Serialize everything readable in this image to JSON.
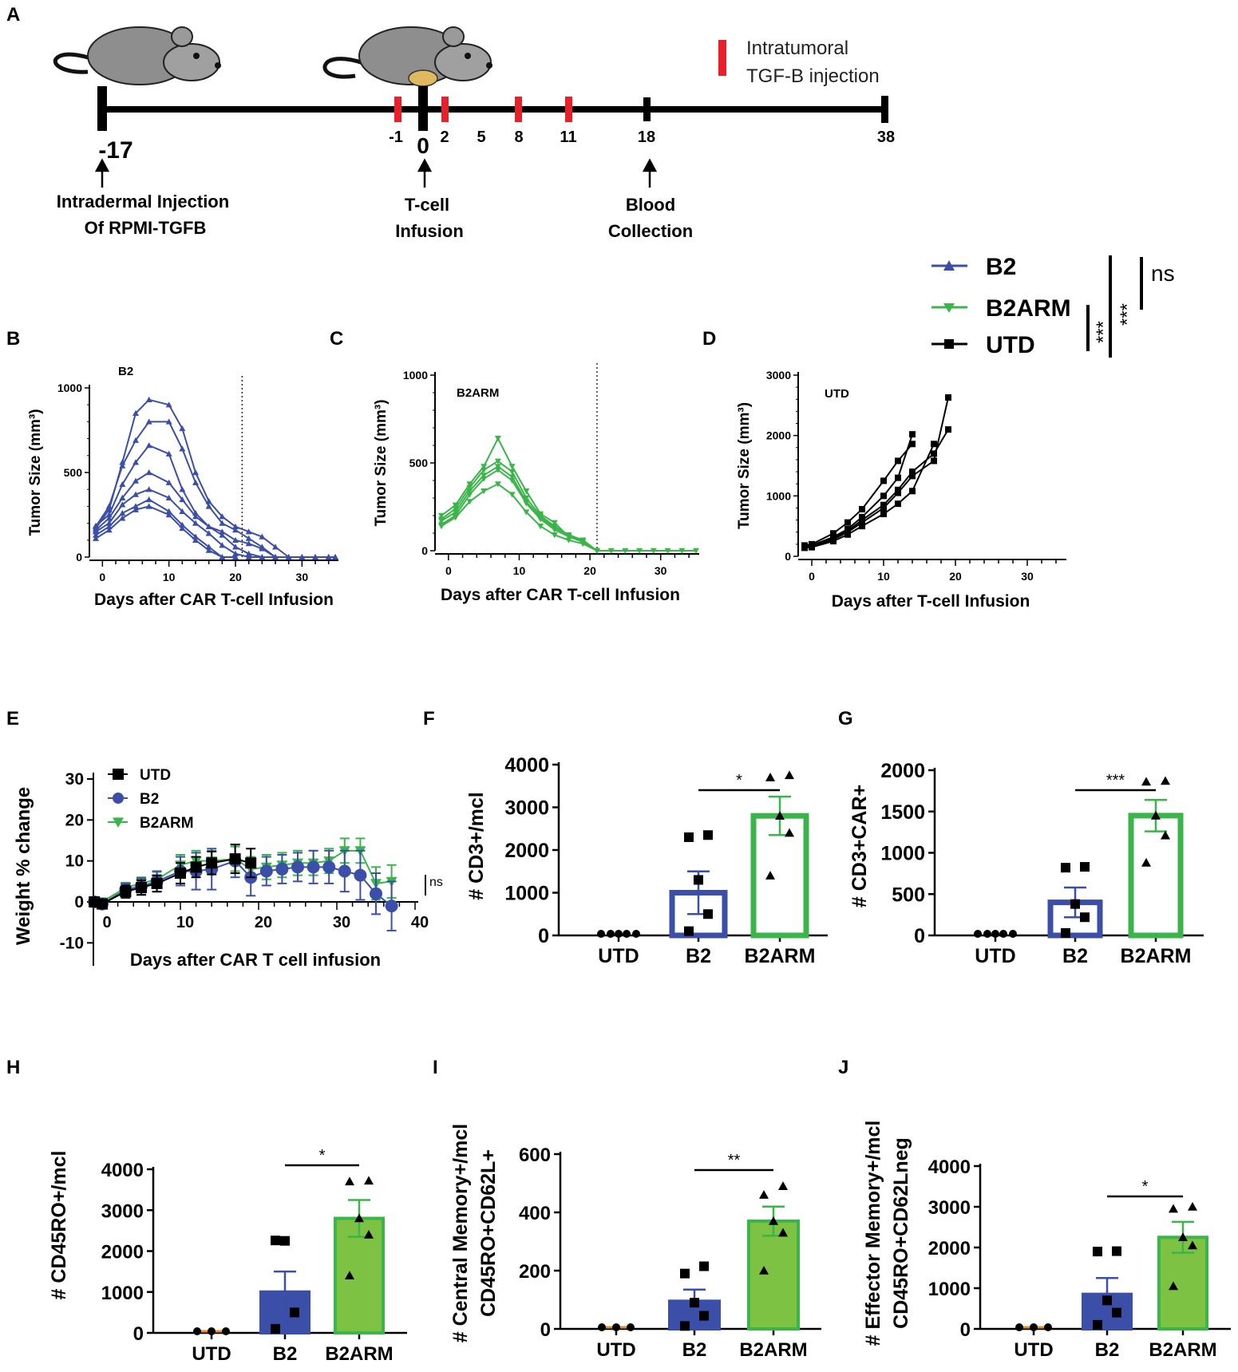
{
  "colors": {
    "b2": "#3B4EA8",
    "b2arm": "#3BB54A",
    "utd": "#000000",
    "tgf": "#E8202A",
    "b2fill_light": "#3B4EA8",
    "b2armfill": "#7DC242"
  },
  "panel_letters": [
    "A",
    "B",
    "C",
    "D",
    "E",
    "F",
    "G",
    "H",
    "I",
    "J"
  ],
  "timeline": {
    "days": [
      "-17",
      "-1",
      "0",
      "2",
      "5",
      "8",
      "11",
      "18",
      "38"
    ],
    "annotations": {
      "injection": [
        "Intradermal Injection",
        "Of RPMI-TGFB"
      ],
      "infusion": [
        "T-cell",
        "Infusion"
      ],
      "blood": [
        "Blood",
        "Collection"
      ]
    },
    "legend": [
      "Intratumoral",
      "TGF-B injection"
    ]
  },
  "group_legend": {
    "entries": [
      "B2",
      "B2ARM",
      "UTD"
    ],
    "sig": [
      "ns",
      "***",
      "***"
    ]
  },
  "chart_data": [
    {
      "panel": "B",
      "type": "line",
      "title": "B2",
      "xlabel": "Days after CAR T-cell Infusion",
      "ylabel": "Tumor Size (mm³)",
      "xlim": [
        -1,
        35
      ],
      "ylim": [
        0,
        1000
      ],
      "xticks": [
        "0",
        "10",
        "20",
        "30"
      ],
      "yticks": [
        "0",
        "500",
        "1000"
      ],
      "series": [
        {
          "x": [
            -1,
            1,
            3,
            5,
            7,
            10,
            12,
            14,
            16,
            18,
            20,
            22,
            24,
            26,
            28,
            30,
            32,
            34,
            35
          ],
          "y": [
            185,
            250,
            430,
            560,
            660,
            610,
            400,
            260,
            180,
            150,
            100,
            80,
            50,
            0,
            0,
            0,
            0,
            0,
            0
          ]
        },
        {
          "x": [
            -1,
            1,
            3,
            5,
            7,
            10,
            12,
            14,
            16,
            18,
            20,
            22,
            24,
            26,
            28,
            30,
            32,
            34,
            35
          ],
          "y": [
            160,
            230,
            350,
            450,
            500,
            440,
            340,
            240,
            180,
            130,
            60,
            20,
            0,
            0,
            0,
            0,
            0,
            0,
            0
          ]
        },
        {
          "x": [
            -1,
            1,
            3,
            5,
            7,
            10,
            12,
            14,
            16,
            18,
            20,
            22,
            24,
            26,
            28,
            30,
            32,
            34,
            35
          ],
          "y": [
            150,
            200,
            310,
            370,
            400,
            350,
            270,
            200,
            140,
            70,
            20,
            0,
            0,
            0,
            0,
            0,
            0,
            0,
            0
          ]
        },
        {
          "x": [
            -1,
            1,
            3,
            5,
            7,
            10,
            12,
            14,
            16,
            18,
            20
          ],
          "y": [
            130,
            180,
            260,
            300,
            340,
            270,
            190,
            120,
            60,
            0,
            0
          ]
        },
        {
          "x": [
            -1,
            1,
            3,
            5,
            7,
            10,
            12,
            14,
            16,
            18,
            20
          ],
          "y": [
            110,
            160,
            230,
            280,
            300,
            250,
            170,
            100,
            40,
            0,
            0
          ]
        },
        {
          "x": [
            -1,
            1,
            3,
            5,
            7,
            10,
            12,
            14,
            16,
            18,
            20,
            22,
            24,
            26
          ],
          "y": [
            180,
            300,
            540,
            690,
            800,
            800,
            640,
            440,
            300,
            200,
            160,
            110,
            60,
            0
          ]
        },
        {
          "x": [
            -1,
            1,
            3,
            5,
            7,
            10,
            12,
            14,
            16,
            18,
            20,
            22,
            24,
            26,
            28
          ],
          "y": [
            170,
            280,
            560,
            850,
            930,
            900,
            760,
            500,
            330,
            240,
            180,
            150,
            120,
            60,
            0
          ]
        }
      ],
      "vline": 21
    },
    {
      "panel": "C",
      "type": "line",
      "title": "B2ARM",
      "xlabel": "Days after CAR T-cell Infusion",
      "ylabel": "Tumor Size (mm³)",
      "xlim": [
        -1,
        35
      ],
      "ylim": [
        0,
        1000
      ],
      "xticks": [
        "0",
        "10",
        "20",
        "30"
      ],
      "yticks": [
        "0",
        "500",
        "1000"
      ],
      "series": [
        {
          "x": [
            -1,
            1,
            3,
            5,
            7,
            9,
            11,
            13,
            15,
            17,
            19,
            21,
            23,
            25,
            27,
            29,
            31,
            33,
            35
          ],
          "y": [
            200,
            260,
            380,
            480,
            640,
            480,
            340,
            210,
            160,
            80,
            60,
            0,
            0,
            0,
            0,
            0,
            0,
            0,
            0
          ]
        },
        {
          "x": [
            -1,
            1,
            3,
            5,
            7,
            9,
            11,
            13,
            15,
            17,
            19,
            21
          ],
          "y": [
            180,
            240,
            360,
            460,
            510,
            450,
            300,
            200,
            140,
            90,
            60,
            0
          ]
        },
        {
          "x": [
            -1,
            1,
            3,
            5,
            7,
            9,
            11,
            13,
            15,
            17,
            19,
            21
          ],
          "y": [
            170,
            220,
            340,
            430,
            480,
            420,
            280,
            190,
            130,
            90,
            60,
            0
          ]
        },
        {
          "x": [
            -1,
            1,
            3,
            5,
            7,
            9,
            11,
            13,
            15,
            17,
            19,
            21
          ],
          "y": [
            150,
            200,
            320,
            410,
            460,
            400,
            270,
            180,
            120,
            80,
            50,
            0
          ]
        },
        {
          "x": [
            -1,
            1,
            3,
            5,
            7,
            9,
            11,
            13,
            15,
            17,
            19,
            21
          ],
          "y": [
            140,
            190,
            280,
            340,
            380,
            320,
            220,
            140,
            90,
            60,
            40,
            0
          ]
        }
      ],
      "vline": 21
    },
    {
      "panel": "D",
      "type": "line",
      "title": "UTD",
      "xlabel": "Days after T-cell Infusion",
      "ylabel": "Tumor Size (mm³)",
      "xlim": [
        -1,
        35
      ],
      "ylim": [
        0,
        3000
      ],
      "xticks": [
        "0",
        "10",
        "20",
        "30"
      ],
      "yticks": [
        "0",
        "1000",
        "2000",
        "3000"
      ],
      "series": [
        {
          "x": [
            -1,
            0,
            3,
            5,
            7,
            10,
            12,
            14
          ],
          "y": [
            170,
            180,
            320,
            450,
            650,
            1000,
            1300,
            2020
          ]
        },
        {
          "x": [
            -1,
            0,
            3,
            5,
            7,
            10,
            12,
            14,
            17,
            19
          ],
          "y": [
            160,
            170,
            300,
            420,
            600,
            850,
            1100,
            1400,
            1700,
            2100
          ]
        },
        {
          "x": [
            -1,
            0,
            3,
            5,
            7,
            10,
            12,
            14,
            17,
            19
          ],
          "y": [
            150,
            160,
            280,
            400,
            560,
            800,
            1050,
            1330,
            1580,
            2630
          ]
        },
        {
          "x": [
            -1,
            0,
            3,
            5,
            7,
            10,
            12,
            14
          ],
          "y": [
            180,
            200,
            380,
            560,
            780,
            1250,
            1580,
            1860
          ]
        },
        {
          "x": [
            -1,
            0,
            3,
            5,
            7,
            10,
            12,
            14,
            17
          ],
          "y": [
            140,
            150,
            250,
            360,
            500,
            700,
            870,
            1080,
            1860
          ]
        }
      ]
    },
    {
      "panel": "E",
      "type": "line",
      "xlabel": "Days after CAR T cell infusion",
      "ylabel": "Weight % change",
      "xlim": [
        -2,
        40
      ],
      "ylim": [
        -10,
        30
      ],
      "xticks": [
        "0",
        "10",
        "20",
        "30",
        "40"
      ],
      "yticks": [
        "-10",
        "0",
        "10",
        "20",
        "30"
      ],
      "legend": [
        "UTD",
        "B2",
        "B2ARM"
      ],
      "series": [
        {
          "name": "UTD",
          "x": [
            -1,
            0,
            3,
            5,
            7,
            10,
            12,
            14,
            17,
            19
          ],
          "y": [
            0,
            -0.5,
            2.5,
            3.5,
            4.5,
            7,
            8.5,
            9.5,
            10.5,
            9.5
          ],
          "err": [
            0.6,
            0.8,
            1.5,
            1.8,
            2,
            2.5,
            2.5,
            2.8,
            3.5,
            3.5
          ]
        },
        {
          "name": "B2",
          "x": [
            -1,
            0,
            3,
            5,
            7,
            10,
            12,
            14,
            17,
            19,
            21,
            23,
            25,
            27,
            29,
            31,
            33,
            35,
            37
          ],
          "y": [
            0,
            -0.5,
            3,
            3.8,
            5,
            7.5,
            7.5,
            8,
            10,
            6,
            7.5,
            8,
            8.5,
            8.5,
            8.5,
            7.5,
            6.5,
            2,
            -1
          ],
          "err": [
            0.6,
            0.8,
            1.5,
            2,
            2.5,
            3.5,
            4.5,
            5,
            4,
            4.5,
            3.5,
            3.5,
            3.5,
            4,
            4,
            5,
            6,
            5,
            6
          ]
        },
        {
          "name": "B2ARM",
          "x": [
            -1,
            0,
            3,
            5,
            7,
            10,
            12,
            14,
            17,
            19,
            21,
            23,
            25,
            27,
            29,
            31,
            33,
            35,
            37
          ],
          "y": [
            0,
            0,
            3.5,
            4.5,
            5.5,
            9,
            10,
            10,
            10.5,
            8,
            8.5,
            9,
            9.5,
            9.5,
            10,
            12.5,
            12.5,
            4.5,
            5
          ],
          "err": [
            0.5,
            0.6,
            1.2,
            1.5,
            1.8,
            2.5,
            2.5,
            2.5,
            3,
            3,
            3,
            3,
            3,
            3,
            3,
            3,
            3,
            4,
            4
          ]
        }
      ],
      "sig": "ns"
    },
    {
      "panel": "F",
      "type": "bar",
      "ylabel": "# CD3+/mcl",
      "categories": [
        "UTD",
        "B2",
        "B2ARM"
      ],
      "values": [
        0,
        1000,
        2800
      ],
      "sem": [
        0,
        500,
        450
      ],
      "points": [
        [
          0,
          0,
          0,
          0,
          0
        ],
        [
          100,
          500,
          1300,
          2300,
          2350
        ],
        [
          1400,
          2400,
          2800,
          3700,
          3750
        ]
      ],
      "yticks": [
        "0",
        "1000",
        "2000",
        "3000",
        "4000"
      ],
      "ylim": [
        0,
        4000
      ],
      "sig": "*",
      "style": "outline"
    },
    {
      "panel": "G",
      "type": "bar",
      "ylabel": "# CD3+CAR+",
      "categories": [
        "UTD",
        "B2",
        "B2ARM"
      ],
      "values": [
        0,
        400,
        1450
      ],
      "sem": [
        0,
        180,
        190
      ],
      "points": [
        [
          0,
          0,
          0,
          0,
          0
        ],
        [
          30,
          220,
          380,
          820,
          830
        ],
        [
          880,
          1210,
          1450,
          1860,
          1870
        ]
      ],
      "yticks": [
        "0",
        "500",
        "1000",
        "1500",
        "2000"
      ],
      "ylim": [
        0,
        2000
      ],
      "sig": "***",
      "style": "outline"
    },
    {
      "panel": "H",
      "type": "bar",
      "ylabel": "# CD45RO+/mcl",
      "categories": [
        "UTD",
        "B2",
        "B2ARM"
      ],
      "values": [
        0,
        1000,
        2800
      ],
      "sem": [
        0,
        500,
        450
      ],
      "points": [
        [
          0,
          0,
          0
        ],
        [
          100,
          500,
          2250,
          2260
        ],
        [
          1400,
          2400,
          2800,
          3700,
          3720
        ]
      ],
      "yticks": [
        "0",
        "1000",
        "2000",
        "3000",
        "4000"
      ],
      "ylim": [
        0,
        4000
      ],
      "sig": "*",
      "style": "filled"
    },
    {
      "panel": "I",
      "type": "bar",
      "ylabel": [
        "# Central Memory+/mcl",
        "CD45RO+CD62L+"
      ],
      "categories": [
        "UTD",
        "B2",
        "B2ARM"
      ],
      "values": [
        5,
        95,
        370
      ],
      "sem": [
        0,
        40,
        50
      ],
      "points": [
        [
          0,
          0,
          0
        ],
        [
          10,
          45,
          90,
          190,
          215
        ],
        [
          200,
          330,
          370,
          460,
          490
        ]
      ],
      "yticks": [
        "0",
        "200",
        "400",
        "600"
      ],
      "ylim": [
        0,
        600
      ],
      "sig": "**",
      "style": "filled"
    },
    {
      "panel": "J",
      "type": "bar",
      "ylabel": [
        "# Effector Memory+/mcl",
        "CD45RO+CD62Lneg"
      ],
      "categories": [
        "UTD",
        "B2",
        "B2ARM"
      ],
      "values": [
        0,
        850,
        2250
      ],
      "sem": [
        0,
        400,
        380
      ],
      "points": [
        [
          0,
          0,
          0
        ],
        [
          100,
          400,
          700,
          1900,
          1910
        ],
        [
          1050,
          2050,
          2250,
          2950,
          3000
        ]
      ],
      "yticks": [
        "0",
        "1000",
        "2000",
        "3000",
        "4000"
      ],
      "ylim": [
        0,
        4000
      ],
      "sig": "*",
      "style": "filled"
    }
  ]
}
